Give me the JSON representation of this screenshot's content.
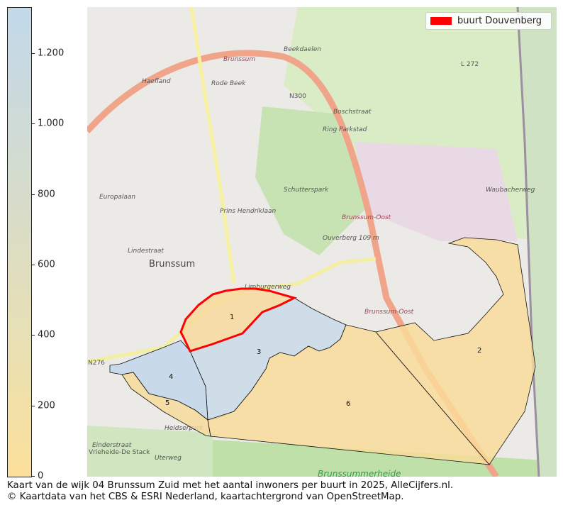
{
  "colorbar": {
    "ticks": [
      {
        "value": 0,
        "label": "0"
      },
      {
        "value": 200,
        "label": "200"
      },
      {
        "value": 400,
        "label": "400"
      },
      {
        "value": 600,
        "label": "600"
      },
      {
        "value": 800,
        "label": "800"
      },
      {
        "value": 1000,
        "label": "1.000"
      },
      {
        "value": 1200,
        "label": "1.200"
      }
    ],
    "min_color": "#fbe09a",
    "max_color": "#c2d9ea"
  },
  "legend": {
    "label": "buurt Douvenberg",
    "color": "#ff0000"
  },
  "map": {
    "buurten": [
      {
        "label": "1",
        "fill": "#f6d99a",
        "highlight": true
      },
      {
        "label": "2",
        "fill": "#f9dc98"
      },
      {
        "label": "3",
        "fill": "#c7dbe6"
      },
      {
        "label": "4",
        "fill": "#bfd6ea"
      },
      {
        "label": "5",
        "fill": "#f7da98"
      },
      {
        "label": "6",
        "fill": "#f9dc98"
      }
    ],
    "places": [
      "Brunssum",
      "Schutterspark",
      "Brunssum-Oost",
      "Brunssum-Oost",
      "Ouverberg 109 m",
      "Rode Beek",
      "Beekdaelen",
      "Brunssum",
      "Lindestraat",
      "Vrieheide-De Stack",
      "Einderstraat",
      "Uterweg",
      "Heidserpark",
      "Brunssummerheide",
      "Ring Parkstad",
      "N300",
      "N276",
      "L 272",
      "Limburgerweg",
      "Prins Hendriklaan",
      "Haefland",
      "Boschstraat",
      "Europalaan",
      "Waubacherweg"
    ]
  },
  "caption": {
    "line1": "Kaart van de wijk 04 Brunssum Zuid met het aantal inwoners per buurt in 2025, AlleCijfers.nl.",
    "line2": "© Kaartdata van het CBS & ESRI Nederland, kaartachtergrond van OpenStreetMap."
  }
}
